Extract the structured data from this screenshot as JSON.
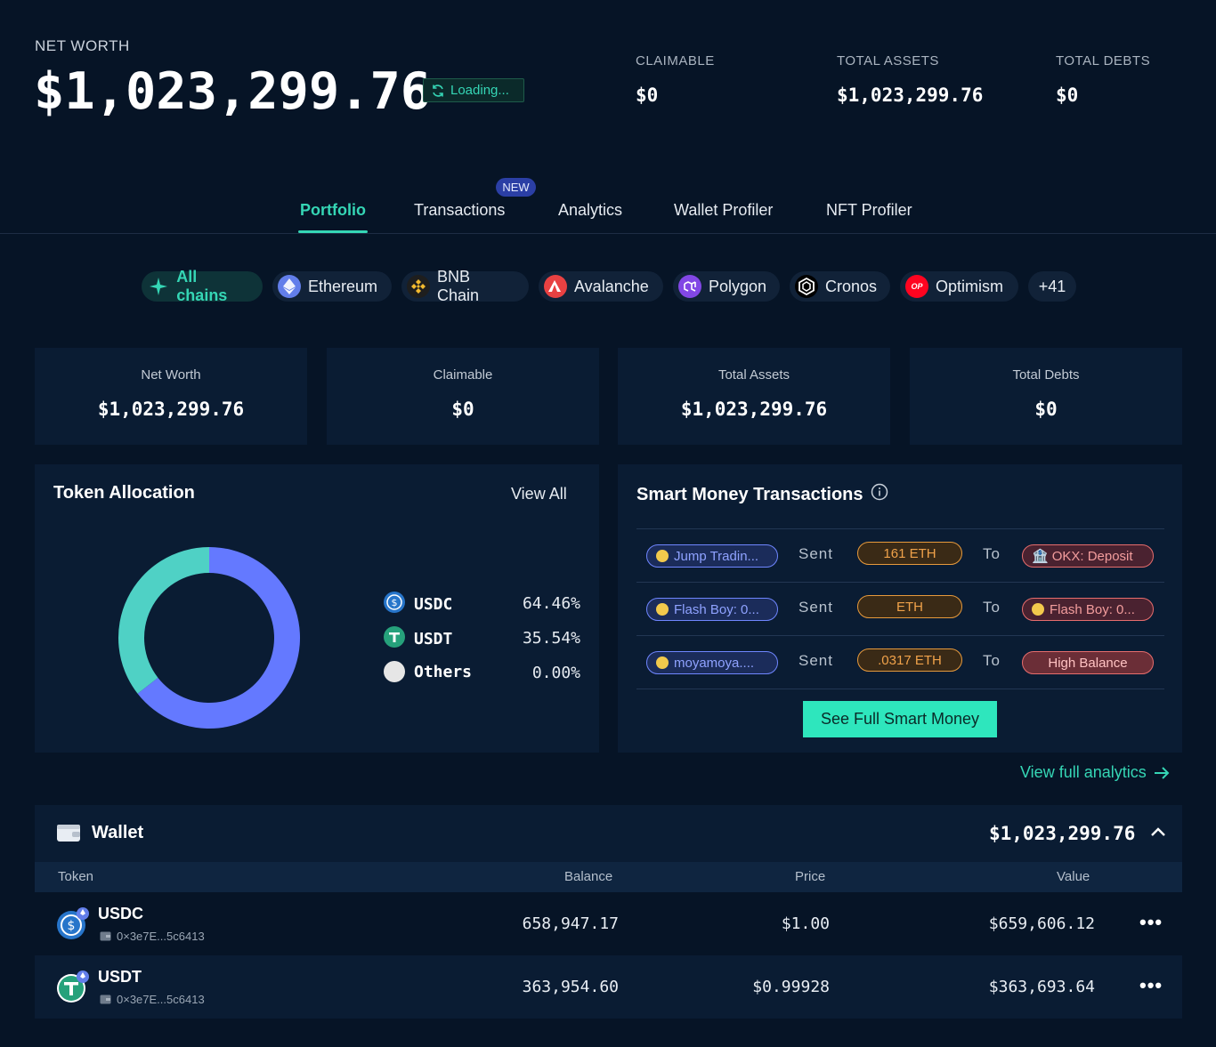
{
  "header": {
    "net_worth_label": "NET WORTH",
    "net_worth_value": "$1,023,299.76",
    "loading_label": "Loading...",
    "claimable_label": "CLAIMABLE",
    "claimable_value": "$0",
    "total_assets_label": "TOTAL ASSETS",
    "total_assets_value": "$1,023,299.76",
    "total_debts_label": "TOTAL DEBTS",
    "total_debts_value": "$0"
  },
  "tabs": [
    {
      "label": "Portfolio",
      "active": true
    },
    {
      "label": "Transactions",
      "badge": "NEW"
    },
    {
      "label": "Analytics"
    },
    {
      "label": "Wallet Profiler"
    },
    {
      "label": "NFT Profiler"
    }
  ],
  "chains": [
    {
      "label": "All chains",
      "icon": "all-chains-icon",
      "active": true
    },
    {
      "label": "Ethereum",
      "icon": "ethereum-icon"
    },
    {
      "label": "BNB Chain",
      "icon": "bnb-icon"
    },
    {
      "label": "Avalanche",
      "icon": "avalanche-icon"
    },
    {
      "label": "Polygon",
      "icon": "polygon-icon"
    },
    {
      "label": "Cronos",
      "icon": "cronos-icon"
    },
    {
      "label": "Optimism",
      "icon": "optimism-icon",
      "icon_text": "OP"
    },
    {
      "label": "+41"
    }
  ],
  "cards": [
    {
      "label": "Net Worth",
      "value": "$1,023,299.76"
    },
    {
      "label": "Claimable",
      "value": "$0"
    },
    {
      "label": "Total Assets",
      "value": "$1,023,299.76"
    },
    {
      "label": "Total Debts",
      "value": "$0"
    }
  ],
  "allocation": {
    "title": "Token Allocation",
    "view_all": "View All",
    "items": [
      {
        "name": "USDC",
        "pct": "64.46%",
        "value": 64.46,
        "color": "#6479ff"
      },
      {
        "name": "USDT",
        "pct": "35.54%",
        "value": 35.54,
        "color": "#4fd1c5"
      },
      {
        "name": "Others",
        "pct": "0.00%",
        "value": 0,
        "color": "#e6e6e6"
      }
    ]
  },
  "smart_money": {
    "title": "Smart Money Transactions",
    "sent_word": "Sent",
    "to_word": "To",
    "rows": [
      {
        "from": "Jump Tradin...",
        "amount": "161 ETH",
        "to": "OKX: Deposit",
        "to_style": "red"
      },
      {
        "from": "Flash Boy: 0...",
        "amount": "ETH",
        "to": "Flash Boy: 0...",
        "to_style": "red"
      },
      {
        "from": "moyamoya....",
        "amount": ".0317 ETH",
        "to": "High Balance",
        "to_style": "redsolid"
      }
    ],
    "cta": "See Full Smart Money"
  },
  "analytics_link": "View full analytics",
  "wallet": {
    "title": "Wallet",
    "total": "$1,023,299.76",
    "columns": {
      "token": "Token",
      "balance": "Balance",
      "price": "Price",
      "value": "Value"
    },
    "rows": [
      {
        "name": "USDC",
        "address": "0×3e7E...5c6413",
        "balance": "658,947.17",
        "price": "$1.00",
        "value": "$659,606.12"
      },
      {
        "name": "USDT",
        "address": "0×3e7E...5c6413",
        "balance": "363,954.60",
        "price": "$0.99928",
        "value": "$363,693.64"
      }
    ]
  },
  "colors": {
    "accent": "#35d6b5",
    "background": "#061426",
    "panel": "#0a1c33"
  }
}
